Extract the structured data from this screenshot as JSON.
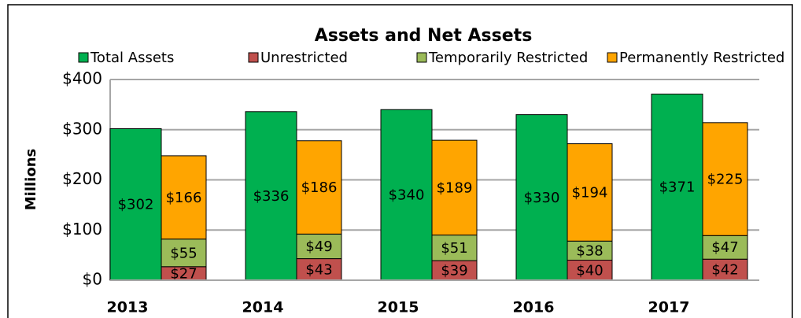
{
  "chart_data": {
    "type": "bar",
    "title": "Assets and Net Assets",
    "y_label": "Millions",
    "categories": [
      "2013",
      "2014",
      "2015",
      "2016",
      "2017"
    ],
    "series": [
      {
        "name": "Total Assets",
        "color": "#00b050",
        "values": [
          302,
          336,
          340,
          330,
          371
        ],
        "value_labels": [
          "$302",
          "$336",
          "$340",
          "$330",
          "$371"
        ]
      },
      {
        "name": "Unrestricted",
        "color": "#c0504d",
        "values": [
          27,
          43,
          39,
          40,
          42
        ],
        "value_labels": [
          "$27",
          "$43",
          "$39",
          "$40",
          "$42"
        ]
      },
      {
        "name": "Temporarily Restricted",
        "color": "#9bbb59",
        "values": [
          55,
          49,
          51,
          38,
          47
        ],
        "value_labels": [
          "$55",
          "$49",
          "$51",
          "$38",
          "$47"
        ]
      },
      {
        "name": "Permanently Restricted",
        "color": "#ffa500",
        "values": [
          166,
          186,
          189,
          194,
          225
        ],
        "value_labels": [
          "$166",
          "$186",
          "$189",
          "$194",
          "$225"
        ]
      }
    ],
    "ylim": [
      0,
      400
    ],
    "yticks": [
      {
        "value": 0,
        "label": "$0"
      },
      {
        "value": 100,
        "label": "$100"
      },
      {
        "value": 200,
        "label": "$200"
      },
      {
        "value": 300,
        "label": "$300"
      },
      {
        "value": 400,
        "label": "$400"
      }
    ],
    "grid": true
  }
}
